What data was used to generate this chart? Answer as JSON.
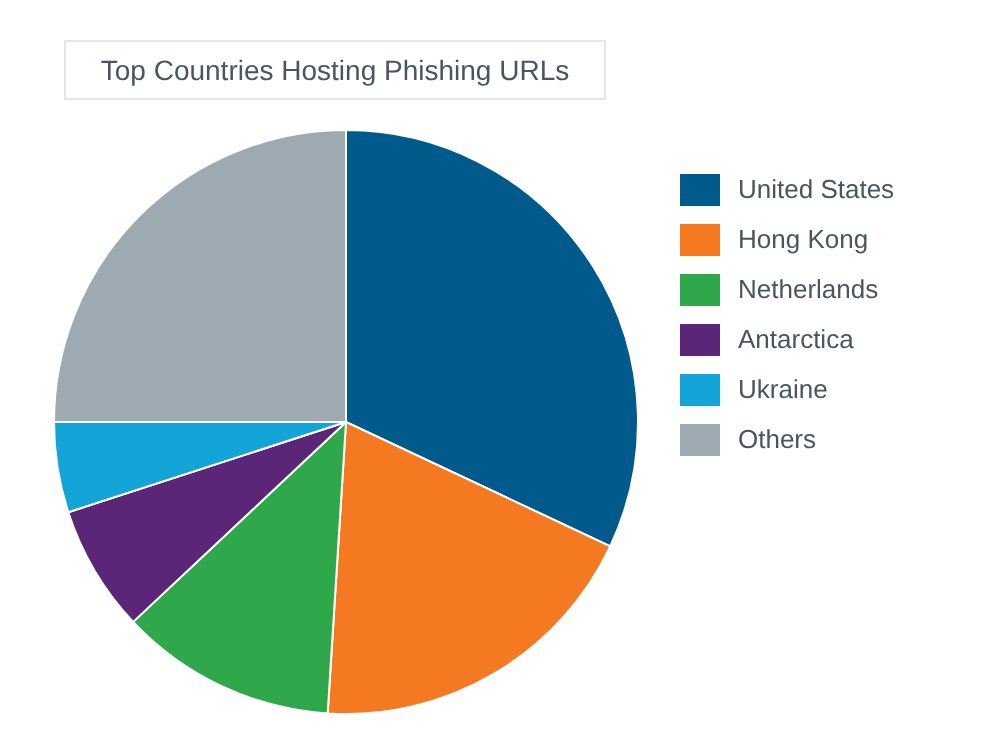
{
  "chart_data": {
    "type": "pie",
    "title": "Top Countries Hosting Phishing URLs",
    "categories": [
      "United States",
      "Hong Kong",
      "Netherlands",
      "Antarctica",
      "Ukraine",
      "Others"
    ],
    "values": [
      32,
      19,
      12,
      7,
      5,
      25
    ],
    "colors": [
      "#005a8c",
      "#f47920",
      "#2ea84a",
      "#5b2677",
      "#14a5d8",
      "#9eaab2"
    ],
    "legend": "right"
  }
}
